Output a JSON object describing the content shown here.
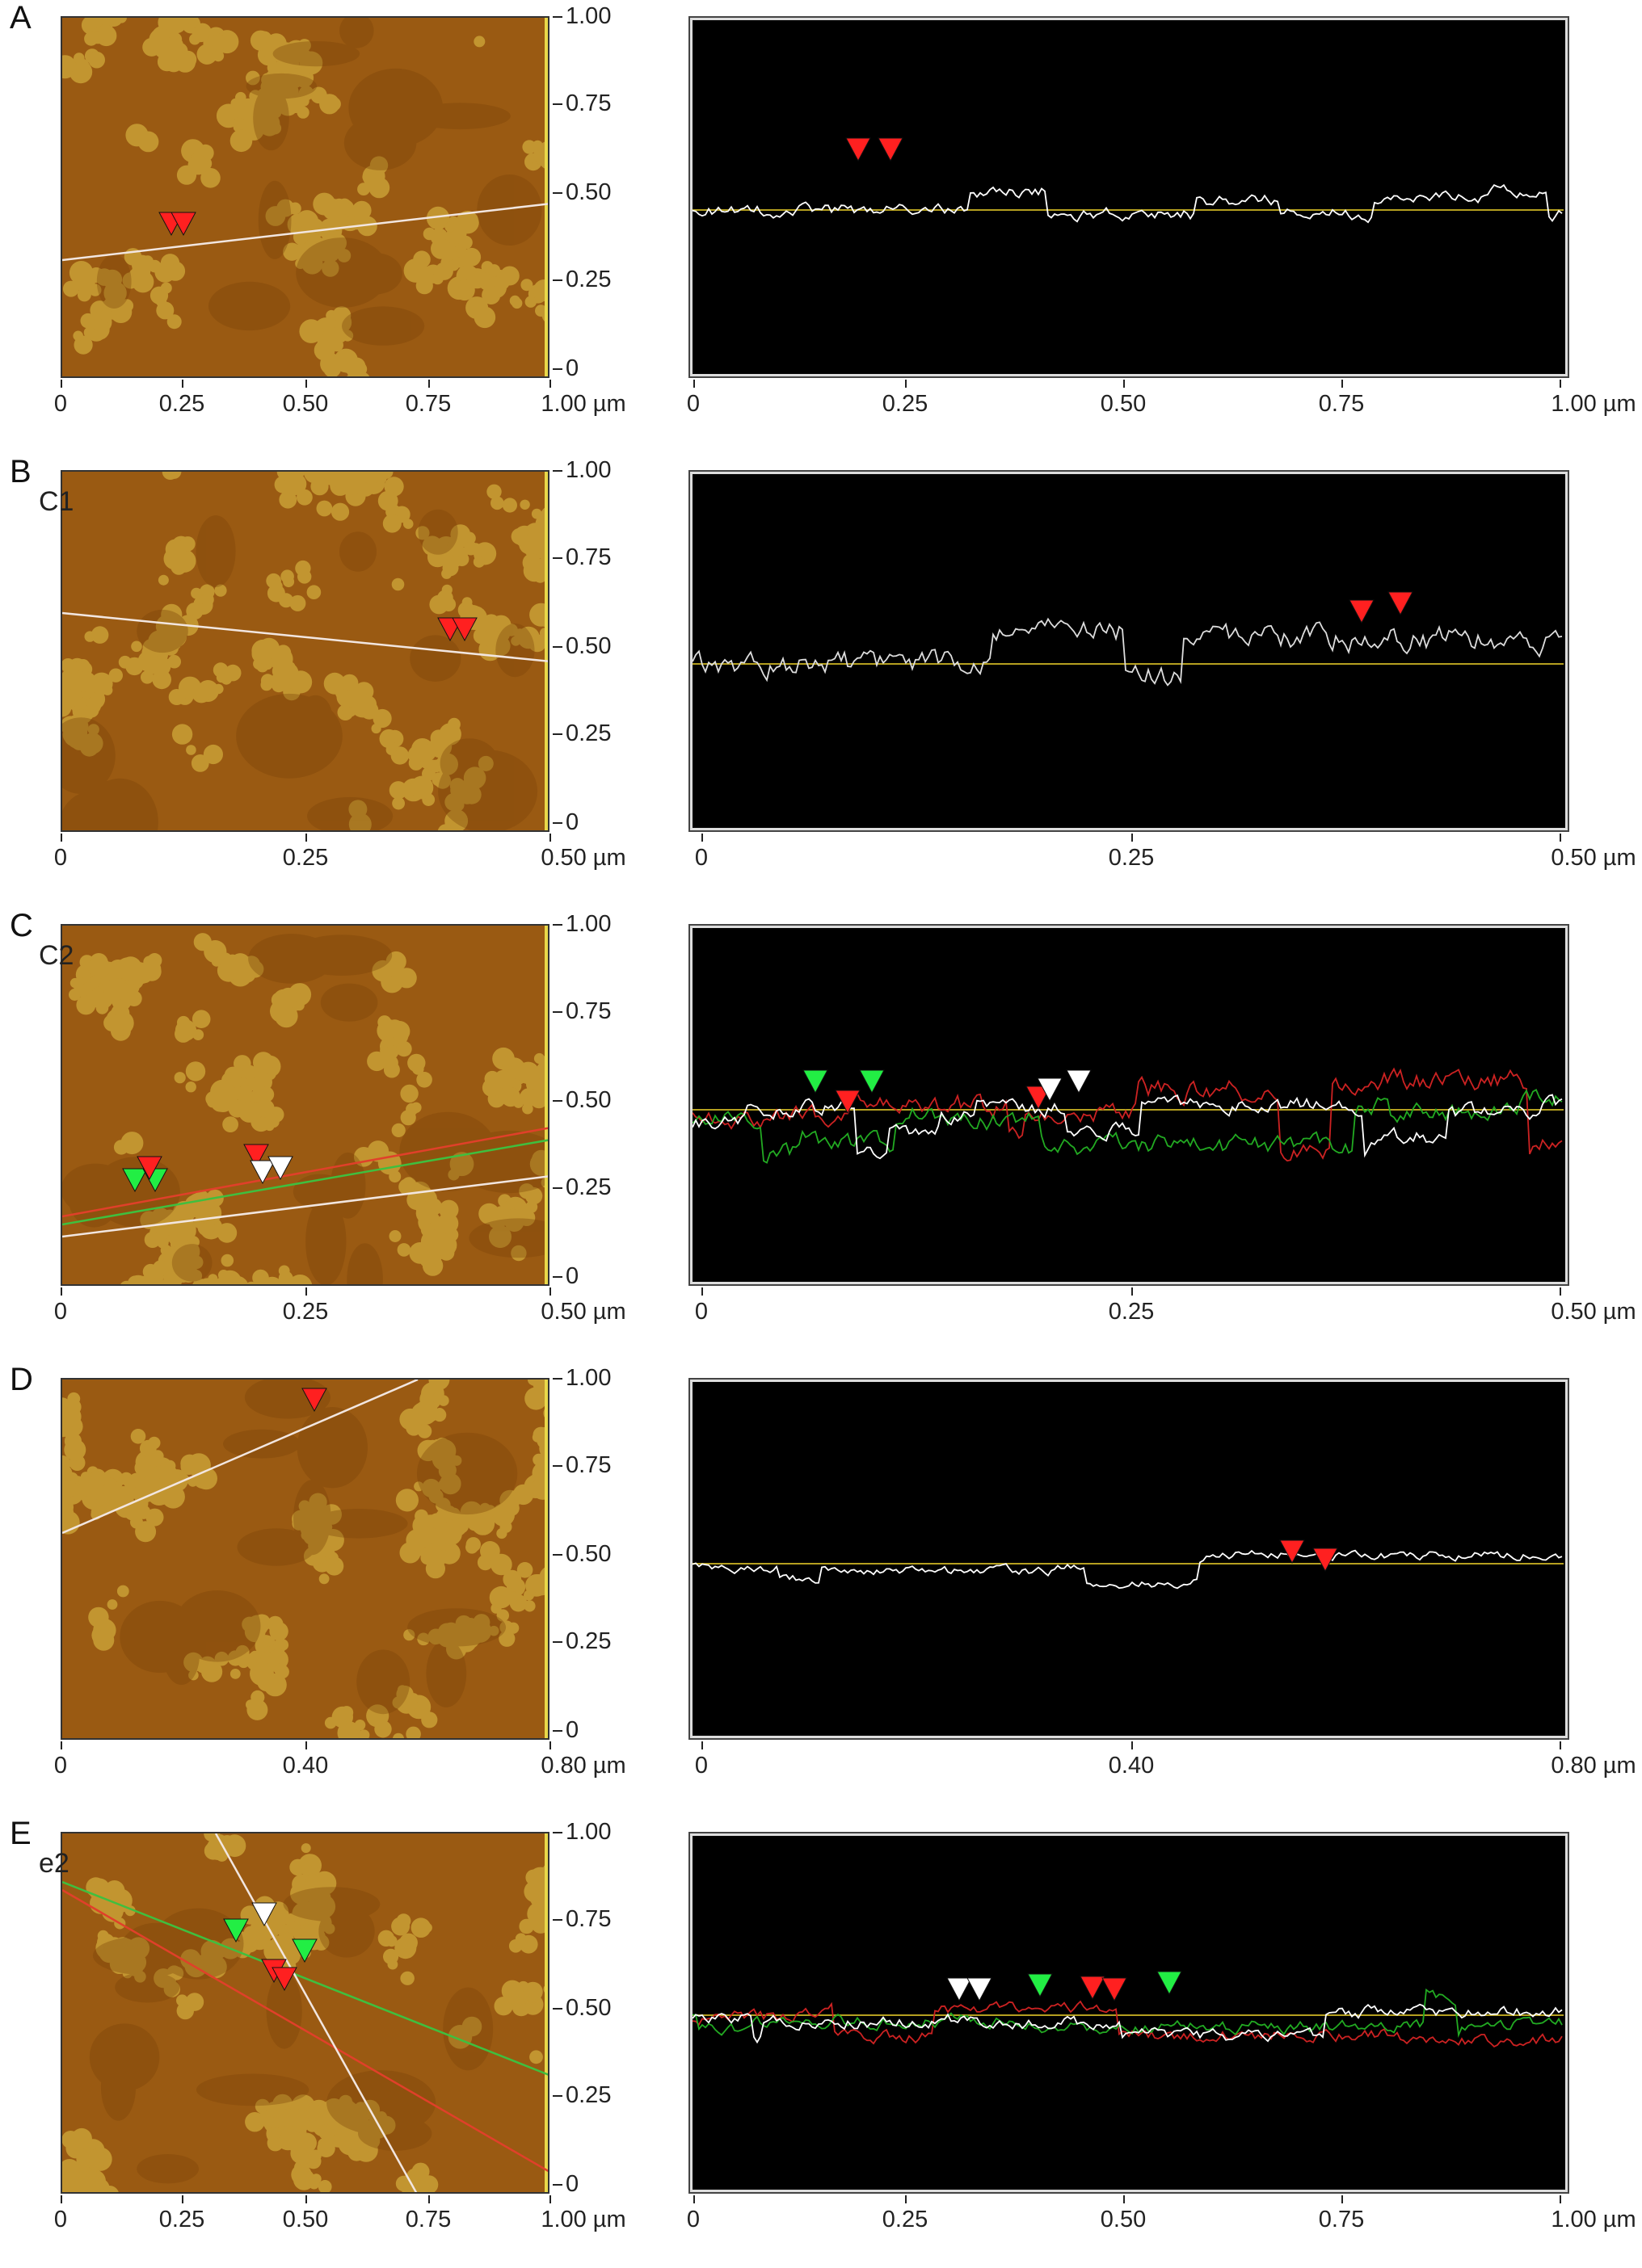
{
  "figure": {
    "panels": [
      {
        "letter": "A",
        "inset_label": "",
        "afm_y_ticks": [
          "1.00",
          "0.75",
          "0.50",
          "0.25",
          "0"
        ],
        "afm_x_ticks": [
          "0",
          "0.25",
          "0.50",
          "0.75",
          "1.00 µm"
        ],
        "profile_x_ticks": [
          "0",
          "0.25",
          "0.50",
          "0.75",
          "1.00 µm"
        ]
      },
      {
        "letter": "B",
        "inset_label": "C1",
        "afm_y_ticks": [
          "1.00",
          "0.75",
          "0.50",
          "0.25",
          "0"
        ],
        "afm_x_ticks": [
          "0",
          "0.25",
          "0.50 µm"
        ],
        "profile_x_ticks": [
          "0",
          "0.25",
          "0.50 µm"
        ]
      },
      {
        "letter": "C",
        "inset_label": "C2",
        "afm_y_ticks": [
          "1.00",
          "0.75",
          "0.50",
          "0.25",
          "0"
        ],
        "afm_x_ticks": [
          "0",
          "0.25",
          "0.50 µm"
        ],
        "profile_x_ticks": [
          "0",
          "0.25",
          "0.50 µm"
        ]
      },
      {
        "letter": "D",
        "inset_label": "",
        "afm_y_ticks": [
          "1.00",
          "0.75",
          "0.50",
          "0.25",
          "0"
        ],
        "afm_x_ticks": [
          "0",
          "0.40",
          "0.80 µm"
        ],
        "profile_x_ticks": [
          "0",
          "0.40",
          "0.80 µm"
        ]
      },
      {
        "letter": "E",
        "inset_label": "e2",
        "afm_y_ticks": [
          "1.00",
          "0.75",
          "0.50",
          "0.25",
          "0"
        ],
        "afm_x_ticks": [
          "0",
          "0.25",
          "0.50",
          "0.75",
          "1.00 µm"
        ],
        "profile_x_ticks": [
          "0",
          "0.25",
          "0.50",
          "0.75",
          "1.00 µm"
        ]
      }
    ],
    "colors": {
      "afm_background": "#9a5a12",
      "afm_features": "#c9a036",
      "colorbar": "#e8d84a",
      "scan_line_white": "#f2e6e0",
      "scan_line_green": "#3fbf3f",
      "scan_line_red": "#e0402a",
      "marker_red": "#ff2020",
      "marker_green": "#22ee44",
      "marker_white": "#ffffff",
      "profile_background": "#000000",
      "profile_reference": "#b5a020"
    }
  }
}
